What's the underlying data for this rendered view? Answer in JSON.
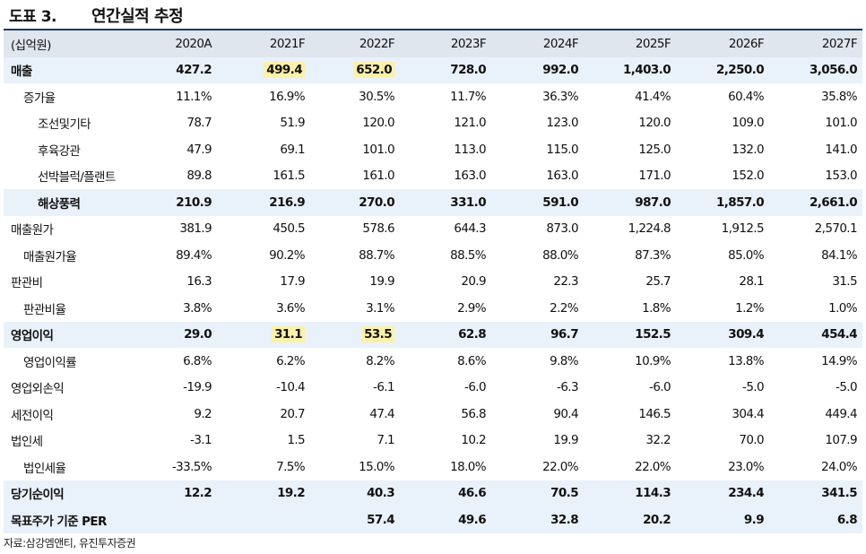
{
  "header": {
    "figure_label": "도표 3.",
    "title": "연간실적 추정"
  },
  "table": {
    "unit": "(십억원)",
    "columns": [
      "2020A",
      "2021F",
      "2022F",
      "2023F",
      "2024F",
      "2025F",
      "2026F",
      "2027F"
    ],
    "rows": [
      {
        "label": "매출",
        "indent": 0,
        "bold": true,
        "values": [
          "427.2",
          "499.4",
          "652.0",
          "728.0",
          "992.0",
          "1,403.0",
          "2,250.0",
          "3,056.0"
        ],
        "highlight": [
          1,
          2
        ]
      },
      {
        "label": "증가율",
        "indent": 1,
        "bold": false,
        "values": [
          "11.1%",
          "16.9%",
          "30.5%",
          "11.7%",
          "36.3%",
          "41.4%",
          "60.4%",
          "35.8%"
        ],
        "highlight": []
      },
      {
        "label": "조선및기타",
        "indent": 2,
        "bold": false,
        "values": [
          "78.7",
          "51.9",
          "120.0",
          "121.0",
          "123.0",
          "120.0",
          "109.0",
          "101.0"
        ],
        "highlight": []
      },
      {
        "label": "후육강관",
        "indent": 2,
        "bold": false,
        "values": [
          "47.9",
          "69.1",
          "101.0",
          "113.0",
          "115.0",
          "125.0",
          "132.0",
          "141.0"
        ],
        "highlight": []
      },
      {
        "label": "선박블럭/플랜트",
        "indent": 2,
        "bold": false,
        "values": [
          "89.8",
          "161.5",
          "161.0",
          "163.0",
          "163.0",
          "171.0",
          "152.0",
          "153.0"
        ],
        "highlight": []
      },
      {
        "label": "해상풍력",
        "indent": 2,
        "bold": true,
        "values": [
          "210.9",
          "216.9",
          "270.0",
          "331.0",
          "591.0",
          "987.0",
          "1,857.0",
          "2,661.0"
        ],
        "highlight": []
      },
      {
        "label": "매출원가",
        "indent": 0,
        "bold": false,
        "values": [
          "381.9",
          "450.5",
          "578.6",
          "644.3",
          "873.0",
          "1,224.8",
          "1,912.5",
          "2,570.1"
        ],
        "highlight": []
      },
      {
        "label": "매출원가율",
        "indent": 1,
        "bold": false,
        "values": [
          "89.4%",
          "90.2%",
          "88.7%",
          "88.5%",
          "88.0%",
          "87.3%",
          "85.0%",
          "84.1%"
        ],
        "highlight": []
      },
      {
        "label": "판관비",
        "indent": 0,
        "bold": false,
        "values": [
          "16.3",
          "17.9",
          "19.9",
          "20.9",
          "22.3",
          "25.7",
          "28.1",
          "31.5"
        ],
        "highlight": []
      },
      {
        "label": "판관비율",
        "indent": 1,
        "bold": false,
        "values": [
          "3.8%",
          "3.6%",
          "3.1%",
          "2.9%",
          "2.2%",
          "1.8%",
          "1.2%",
          "1.0%"
        ],
        "highlight": []
      },
      {
        "label": "영업이익",
        "indent": 0,
        "bold": true,
        "values": [
          "29.0",
          "31.1",
          "53.5",
          "62.8",
          "96.7",
          "152.5",
          "309.4",
          "454.4"
        ],
        "highlight": [
          1,
          2
        ]
      },
      {
        "label": "영업이익률",
        "indent": 1,
        "bold": false,
        "values": [
          "6.8%",
          "6.2%",
          "8.2%",
          "8.6%",
          "9.8%",
          "10.9%",
          "13.8%",
          "14.9%"
        ],
        "highlight": []
      },
      {
        "label": "영업외손익",
        "indent": 0,
        "bold": false,
        "values": [
          "-19.9",
          "-10.4",
          "-6.1",
          "-6.0",
          "-6.3",
          "-6.0",
          "-5.0",
          "-5.0"
        ],
        "highlight": []
      },
      {
        "label": "세전이익",
        "indent": 0,
        "bold": false,
        "values": [
          "9.2",
          "20.7",
          "47.4",
          "56.8",
          "90.4",
          "146.5",
          "304.4",
          "449.4"
        ],
        "highlight": []
      },
      {
        "label": "법인세",
        "indent": 0,
        "bold": false,
        "values": [
          "-3.1",
          "1.5",
          "7.1",
          "10.2",
          "19.9",
          "32.2",
          "70.0",
          "107.9"
        ],
        "highlight": []
      },
      {
        "label": "법인세율",
        "indent": 1,
        "bold": false,
        "values": [
          "-33.5%",
          "7.5%",
          "15.0%",
          "18.0%",
          "22.0%",
          "22.0%",
          "23.0%",
          "24.0%"
        ],
        "highlight": []
      },
      {
        "label": "당기순이익",
        "indent": 0,
        "bold": true,
        "values": [
          "12.2",
          "19.2",
          "40.3",
          "46.6",
          "70.5",
          "114.3",
          "234.4",
          "341.5"
        ],
        "highlight": []
      },
      {
        "label": "목표주가 기준 PER",
        "indent": 0,
        "bold": true,
        "values": [
          "",
          "",
          "57.4",
          "49.6",
          "32.8",
          "20.2",
          "9.9",
          "6.8"
        ],
        "highlight": []
      }
    ]
  },
  "footer": {
    "source": "자료:삼강엠앤티, 유진투자증권"
  }
}
